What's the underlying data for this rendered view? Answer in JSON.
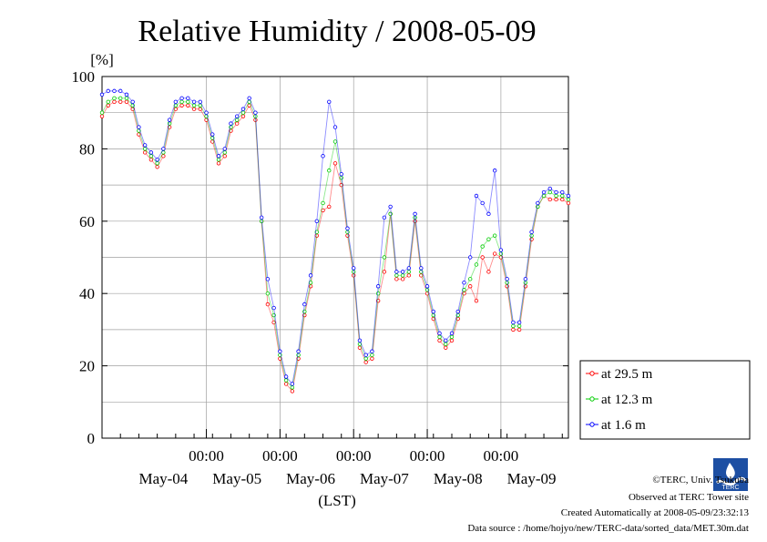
{
  "chart_data": {
    "type": "line",
    "title": "Relative Humidity / 2008-05-09",
    "ylabel": "[%]",
    "xlabel": "(LST)",
    "ylim": [
      0,
      100
    ],
    "xlim": [
      "2008-05-03 14:00",
      "2008-05-09 22:00"
    ],
    "y_ticks": [
      0,
      20,
      40,
      60,
      80,
      100
    ],
    "x_tick_labels": [
      "00:00",
      "00:00",
      "00:00",
      "00:00",
      "00:00"
    ],
    "x_tick_times": [
      "2008-05-05 00:00",
      "2008-05-06 00:00",
      "2008-05-07 00:00",
      "2008-05-08 00:00",
      "2008-05-09 00:00"
    ],
    "date_labels": [
      {
        "text": "May-04",
        "time": "2008-05-04 10:00"
      },
      {
        "text": "May-05",
        "time": "2008-05-05 10:00"
      },
      {
        "text": "May-06",
        "time": "2008-05-06 10:00"
      },
      {
        "text": "May-07",
        "time": "2008-05-07 10:00"
      },
      {
        "text": "May-08",
        "time": "2008-05-08 10:00"
      },
      {
        "text": "May-09",
        "time": "2008-05-09 10:00"
      }
    ],
    "grid": true,
    "legend_position": "bottom-right outside",
    "series": [
      {
        "name": "at 29.5 m",
        "color": "#ff0000",
        "x": [
          "2008-05-03 14:00",
          "2008-05-03 16:00",
          "2008-05-03 18:00",
          "2008-05-03 20:00",
          "2008-05-03 22:00",
          "2008-05-04 00:00",
          "2008-05-04 02:00",
          "2008-05-04 04:00",
          "2008-05-04 06:00",
          "2008-05-04 08:00",
          "2008-05-04 10:00",
          "2008-05-04 12:00",
          "2008-05-04 14:00",
          "2008-05-04 16:00",
          "2008-05-04 18:00",
          "2008-05-04 20:00",
          "2008-05-04 22:00",
          "2008-05-05 00:00",
          "2008-05-05 02:00",
          "2008-05-05 04:00",
          "2008-05-05 06:00",
          "2008-05-05 08:00",
          "2008-05-05 10:00",
          "2008-05-05 12:00",
          "2008-05-05 14:00",
          "2008-05-05 16:00",
          "2008-05-05 18:00",
          "2008-05-05 20:00",
          "2008-05-05 22:00",
          "2008-05-06 00:00",
          "2008-05-06 02:00",
          "2008-05-06 04:00",
          "2008-05-06 06:00",
          "2008-05-06 08:00",
          "2008-05-06 10:00",
          "2008-05-06 12:00",
          "2008-05-06 14:00",
          "2008-05-06 16:00",
          "2008-05-06 18:00",
          "2008-05-06 20:00",
          "2008-05-06 22:00",
          "2008-05-07 00:00",
          "2008-05-07 02:00",
          "2008-05-07 04:00",
          "2008-05-07 06:00",
          "2008-05-07 08:00",
          "2008-05-07 10:00",
          "2008-05-07 12:00",
          "2008-05-07 14:00",
          "2008-05-07 16:00",
          "2008-05-07 18:00",
          "2008-05-07 20:00",
          "2008-05-07 22:00",
          "2008-05-08 00:00",
          "2008-05-08 02:00",
          "2008-05-08 04:00",
          "2008-05-08 06:00",
          "2008-05-08 08:00",
          "2008-05-08 10:00",
          "2008-05-08 12:00",
          "2008-05-08 14:00",
          "2008-05-08 16:00",
          "2008-05-08 18:00",
          "2008-05-08 20:00",
          "2008-05-08 22:00",
          "2008-05-09 00:00",
          "2008-05-09 02:00",
          "2008-05-09 04:00",
          "2008-05-09 06:00",
          "2008-05-09 08:00",
          "2008-05-09 10:00",
          "2008-05-09 12:00",
          "2008-05-09 14:00",
          "2008-05-09 16:00",
          "2008-05-09 18:00",
          "2008-05-09 20:00",
          "2008-05-09 22:00"
        ],
        "y": [
          89,
          92,
          93,
          93,
          93,
          91,
          84,
          79,
          77,
          75,
          78,
          86,
          91,
          92,
          92,
          91,
          91,
          88,
          82,
          76,
          78,
          85,
          87,
          89,
          92,
          88,
          60,
          37,
          32,
          22,
          15,
          13,
          22,
          34,
          42,
          56,
          63,
          64,
          76,
          70,
          56,
          45,
          25,
          21,
          22,
          38,
          46,
          62,
          44,
          44,
          45,
          60,
          45,
          40,
          33,
          27,
          25,
          27,
          33,
          40,
          42,
          38,
          50,
          46,
          51,
          50,
          42,
          30,
          30,
          42,
          55,
          64,
          67,
          66,
          66,
          66,
          65
        ],
        "visible": true
      },
      {
        "name": "at 12.3 m",
        "color": "#00cc00",
        "x": [
          "2008-05-03 14:00",
          "2008-05-03 16:00",
          "2008-05-03 18:00",
          "2008-05-03 20:00",
          "2008-05-03 22:00",
          "2008-05-04 00:00",
          "2008-05-04 02:00",
          "2008-05-04 04:00",
          "2008-05-04 06:00",
          "2008-05-04 08:00",
          "2008-05-04 10:00",
          "2008-05-04 12:00",
          "2008-05-04 14:00",
          "2008-05-04 16:00",
          "2008-05-04 18:00",
          "2008-05-04 20:00",
          "2008-05-04 22:00",
          "2008-05-05 00:00",
          "2008-05-05 02:00",
          "2008-05-05 04:00",
          "2008-05-05 06:00",
          "2008-05-05 08:00",
          "2008-05-05 10:00",
          "2008-05-05 12:00",
          "2008-05-05 14:00",
          "2008-05-05 16:00",
          "2008-05-05 18:00",
          "2008-05-05 20:00",
          "2008-05-05 22:00",
          "2008-05-06 00:00",
          "2008-05-06 02:00",
          "2008-05-06 04:00",
          "2008-05-06 06:00",
          "2008-05-06 08:00",
          "2008-05-06 10:00",
          "2008-05-06 12:00",
          "2008-05-06 14:00",
          "2008-05-06 16:00",
          "2008-05-06 18:00",
          "2008-05-06 20:00",
          "2008-05-06 22:00",
          "2008-05-07 00:00",
          "2008-05-07 02:00",
          "2008-05-07 04:00",
          "2008-05-07 06:00",
          "2008-05-07 08:00",
          "2008-05-07 10:00",
          "2008-05-07 12:00",
          "2008-05-07 14:00",
          "2008-05-07 16:00",
          "2008-05-07 18:00",
          "2008-05-07 20:00",
          "2008-05-07 22:00",
          "2008-05-08 00:00",
          "2008-05-08 02:00",
          "2008-05-08 04:00",
          "2008-05-08 06:00",
          "2008-05-08 08:00",
          "2008-05-08 10:00",
          "2008-05-08 12:00",
          "2008-05-08 14:00",
          "2008-05-08 16:00",
          "2008-05-08 18:00",
          "2008-05-08 20:00",
          "2008-05-08 22:00",
          "2008-05-09 00:00",
          "2008-05-09 02:00",
          "2008-05-09 04:00",
          "2008-05-09 06:00",
          "2008-05-09 08:00",
          "2008-05-09 10:00",
          "2008-05-09 12:00",
          "2008-05-09 14:00",
          "2008-05-09 16:00",
          "2008-05-09 18:00",
          "2008-05-09 20:00",
          "2008-05-09 22:00"
        ],
        "y": [
          90,
          93,
          94,
          94,
          94,
          92,
          85,
          80,
          78,
          76,
          79,
          87,
          92,
          93,
          93,
          92,
          92,
          89,
          83,
          77,
          79,
          86,
          88,
          90,
          93,
          89,
          60,
          40,
          34,
          23,
          16,
          14,
          23,
          35,
          43,
          57,
          65,
          74,
          82,
          72,
          57,
          46,
          26,
          22,
          23,
          40,
          50,
          62,
          45,
          45,
          46,
          61,
          46,
          41,
          34,
          28,
          26,
          28,
          34,
          41,
          44,
          48,
          53,
          55,
          56,
          51,
          43,
          31,
          31,
          43,
          56,
          64,
          67,
          68,
          67,
          67,
          66
        ],
        "visible": true
      },
      {
        "name": "at 1.6 m",
        "color": "#0000ff",
        "x": [
          "2008-05-03 14:00",
          "2008-05-03 16:00",
          "2008-05-03 18:00",
          "2008-05-03 20:00",
          "2008-05-03 22:00",
          "2008-05-04 00:00",
          "2008-05-04 02:00",
          "2008-05-04 04:00",
          "2008-05-04 06:00",
          "2008-05-04 08:00",
          "2008-05-04 10:00",
          "2008-05-04 12:00",
          "2008-05-04 14:00",
          "2008-05-04 16:00",
          "2008-05-04 18:00",
          "2008-05-04 20:00",
          "2008-05-04 22:00",
          "2008-05-05 00:00",
          "2008-05-05 02:00",
          "2008-05-05 04:00",
          "2008-05-05 06:00",
          "2008-05-05 08:00",
          "2008-05-05 10:00",
          "2008-05-05 12:00",
          "2008-05-05 14:00",
          "2008-05-05 16:00",
          "2008-05-05 18:00",
          "2008-05-05 20:00",
          "2008-05-05 22:00",
          "2008-05-06 00:00",
          "2008-05-06 02:00",
          "2008-05-06 04:00",
          "2008-05-06 06:00",
          "2008-05-06 08:00",
          "2008-05-06 10:00",
          "2008-05-06 12:00",
          "2008-05-06 14:00",
          "2008-05-06 16:00",
          "2008-05-06 18:00",
          "2008-05-06 20:00",
          "2008-05-06 22:00",
          "2008-05-07 00:00",
          "2008-05-07 02:00",
          "2008-05-07 04:00",
          "2008-05-07 06:00",
          "2008-05-07 08:00",
          "2008-05-07 10:00",
          "2008-05-07 12:00",
          "2008-05-07 14:00",
          "2008-05-07 16:00",
          "2008-05-07 18:00",
          "2008-05-07 20:00",
          "2008-05-07 22:00",
          "2008-05-08 00:00",
          "2008-05-08 02:00",
          "2008-05-08 04:00",
          "2008-05-08 06:00",
          "2008-05-08 08:00",
          "2008-05-08 10:00",
          "2008-05-08 12:00",
          "2008-05-08 14:00",
          "2008-05-08 16:00",
          "2008-05-08 18:00",
          "2008-05-08 20:00",
          "2008-05-08 22:00",
          "2008-05-09 00:00",
          "2008-05-09 02:00",
          "2008-05-09 04:00",
          "2008-05-09 06:00",
          "2008-05-09 08:00",
          "2008-05-09 10:00",
          "2008-05-09 12:00",
          "2008-05-09 14:00",
          "2008-05-09 16:00",
          "2008-05-09 18:00",
          "2008-05-09 20:00",
          "2008-05-09 22:00"
        ],
        "y": [
          95,
          96,
          96,
          96,
          95,
          93,
          86,
          81,
          79,
          77,
          80,
          88,
          93,
          94,
          94,
          93,
          93,
          90,
          84,
          78,
          80,
          87,
          89,
          91,
          94,
          90,
          61,
          44,
          36,
          24,
          17,
          15,
          24,
          37,
          45,
          60,
          78,
          93,
          86,
          73,
          58,
          47,
          27,
          23,
          24,
          42,
          61,
          64,
          46,
          46,
          47,
          62,
          47,
          42,
          35,
          29,
          27,
          29,
          35,
          43,
          50,
          67,
          65,
          62,
          74,
          52,
          44,
          32,
          32,
          44,
          57,
          65,
          68,
          69,
          68,
          68,
          67
        ],
        "visible": true
      }
    ]
  },
  "footer": {
    "copyright": "©TERC, Univ. Tsukuba",
    "observed": "Observed at TERC Tower site",
    "created": "Created Automatically at 2008-05-09/23:32:13",
    "source": "Data source : /home/hojyo/new/TERC-data/sorted_data/MET.30m.dat",
    "logo_text": "TERC"
  }
}
